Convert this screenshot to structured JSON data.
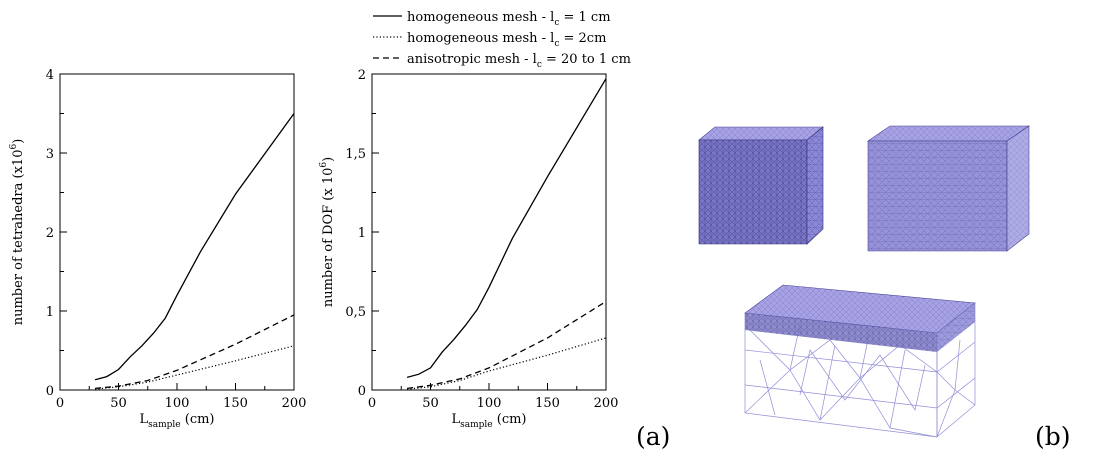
{
  "panel_labels": {
    "a": "(a)",
    "b": "(b)"
  },
  "legend": {
    "items": [
      {
        "label_main": "homogeneous mesh - l",
        "label_sub": "c",
        "label_rest": " = 1 cm",
        "style": "solid"
      },
      {
        "label_main": "homogeneous mesh - l",
        "label_sub": "c",
        "label_rest": " = 2cm",
        "style": "dotted"
      },
      {
        "label_main": "anisotropic mesh - l",
        "label_sub": "c",
        "label_rest": " = 20 to 1 cm",
        "style": "dashed"
      }
    ]
  },
  "colors": {
    "mesh_fill": "#8a86d6",
    "mesh_edge": "#3f3a8a",
    "mesh_wire": "#6d68c9"
  },
  "chart_data": [
    {
      "type": "line",
      "xlabel_main": "L",
      "xlabel_sub": "sample",
      "xlabel_rest": " (cm)",
      "ylabel_main": "number of tetrahedra (x10",
      "ylabel_sup": "6",
      "ylabel_rest": ")",
      "xlim": [
        0,
        200
      ],
      "ylim": [
        0,
        4
      ],
      "xticks": [
        0,
        50,
        100,
        150,
        200
      ],
      "xtick_labels": [
        "0",
        "50",
        "100",
        "150",
        "200"
      ],
      "yticks": [
        0,
        1,
        2,
        3,
        4
      ],
      "ytick_labels": [
        "0",
        "1",
        "2",
        "3",
        "4"
      ],
      "series": [
        {
          "style": "solid",
          "x": [
            30,
            40,
            50,
            60,
            70,
            80,
            90,
            100,
            120,
            150,
            200
          ],
          "y": [
            0.13,
            0.17,
            0.26,
            0.42,
            0.56,
            0.72,
            0.91,
            1.2,
            1.75,
            2.48,
            3.5
          ]
        },
        {
          "style": "dotted",
          "x": [
            30,
            50,
            75,
            100,
            150,
            200
          ],
          "y": [
            0.01,
            0.04,
            0.1,
            0.19,
            0.37,
            0.56
          ]
        },
        {
          "style": "dashed",
          "x": [
            30,
            50,
            75,
            100,
            150,
            200
          ],
          "y": [
            0.02,
            0.05,
            0.12,
            0.25,
            0.58,
            0.95
          ]
        }
      ]
    },
    {
      "type": "line",
      "xlabel_main": "L",
      "xlabel_sub": "sample",
      "xlabel_rest": " (cm)",
      "ylabel_main": "number of DOF (x 10",
      "ylabel_sup": "6",
      "ylabel_rest": ")",
      "xlim": [
        0,
        200
      ],
      "ylim": [
        0,
        2
      ],
      "xticks": [
        0,
        50,
        100,
        150,
        200
      ],
      "xtick_labels": [
        "0",
        "50",
        "100",
        "150",
        "200"
      ],
      "yticks": [
        0,
        0.5,
        1,
        1.5,
        2
      ],
      "ytick_labels": [
        "0",
        "0,5",
        "1",
        "1,5",
        "2"
      ],
      "series": [
        {
          "style": "solid",
          "x": [
            30,
            40,
            50,
            60,
            70,
            80,
            90,
            100,
            120,
            150,
            200
          ],
          "y": [
            0.08,
            0.1,
            0.14,
            0.24,
            0.32,
            0.41,
            0.51,
            0.65,
            0.96,
            1.35,
            1.97
          ]
        },
        {
          "style": "dotted",
          "x": [
            30,
            50,
            75,
            100,
            150,
            200
          ],
          "y": [
            0.005,
            0.02,
            0.06,
            0.12,
            0.22,
            0.33
          ]
        },
        {
          "style": "dashed",
          "x": [
            30,
            50,
            75,
            100,
            150,
            200
          ],
          "y": [
            0.01,
            0.03,
            0.07,
            0.14,
            0.33,
            0.56
          ]
        }
      ]
    }
  ]
}
